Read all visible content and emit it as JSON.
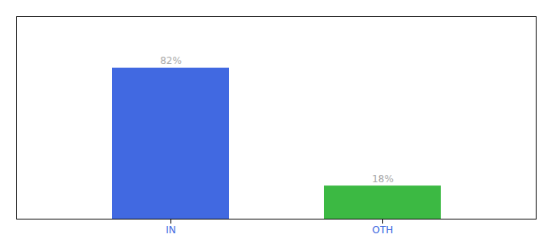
{
  "chart_data": {
    "type": "bar",
    "categories": [
      "IN",
      "OTH"
    ],
    "values": [
      82,
      18
    ],
    "value_labels": [
      "82%",
      "18%"
    ],
    "colors": [
      "#4169e1",
      "#3cb943"
    ],
    "ylim": [
      0,
      110
    ],
    "data_labels": true,
    "tick_labels": "x"
  }
}
